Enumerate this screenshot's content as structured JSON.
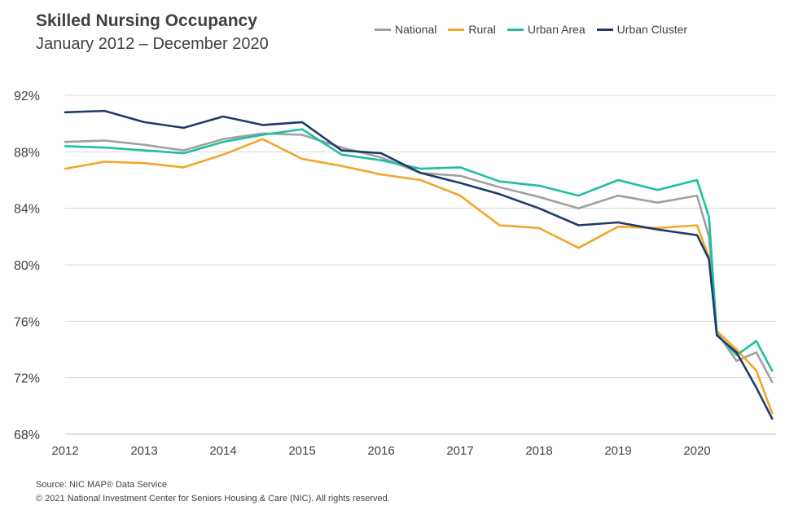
{
  "header": {
    "title": "Skilled Nursing Occupancy",
    "subtitle": "January 2012 – December 2020"
  },
  "footer": {
    "source": "Source: NIC MAP® Data Service",
    "copyright": "© 2021 National Investment Center for Seniors Housing & Care (NIC). All rights reserved."
  },
  "chart_data": {
    "type": "line",
    "title": "Skilled Nursing Occupancy",
    "subtitle": "January 2012 – December 2020",
    "xlabel": "",
    "ylabel": "",
    "x_ticks": [
      "2012",
      "2013",
      "2014",
      "2015",
      "2016",
      "2017",
      "2018",
      "2019",
      "2020"
    ],
    "y_ticks": [
      "68%",
      "72%",
      "76%",
      "80%",
      "84%",
      "88%",
      "92%"
    ],
    "ylim": [
      68,
      92
    ],
    "xlim": [
      2012,
      2021
    ],
    "grid": "horizontal",
    "legend_position": "top-right",
    "x_points": [
      2012.0,
      2012.5,
      2013.0,
      2013.5,
      2014.0,
      2014.5,
      2015.0,
      2015.5,
      2016.0,
      2016.5,
      2017.0,
      2017.5,
      2018.0,
      2018.5,
      2019.0,
      2019.5,
      2020.0,
      2020.15,
      2020.25,
      2020.5,
      2020.75,
      2020.95
    ],
    "series": [
      {
        "name": "National",
        "color": "#a0a0a0",
        "values": [
          88.7,
          88.8,
          88.5,
          88.1,
          88.9,
          89.3,
          89.2,
          88.3,
          87.6,
          86.5,
          86.3,
          85.5,
          84.8,
          84.0,
          84.9,
          84.4,
          84.9,
          82.0,
          75.2,
          73.2,
          73.8,
          71.7
        ]
      },
      {
        "name": "Rural",
        "color": "#f2a629",
        "values": [
          86.8,
          87.3,
          87.2,
          86.9,
          87.8,
          88.9,
          87.5,
          87.0,
          86.4,
          86.0,
          84.9,
          82.8,
          82.6,
          81.2,
          82.7,
          82.6,
          82.8,
          80.5,
          75.3,
          74.0,
          72.5,
          69.5
        ]
      },
      {
        "name": "Urban Area",
        "color": "#1fbf9e",
        "values": [
          88.4,
          88.3,
          88.1,
          87.9,
          88.7,
          89.2,
          89.6,
          87.8,
          87.4,
          86.8,
          86.9,
          85.9,
          85.6,
          84.9,
          86.0,
          85.3,
          86.0,
          83.4,
          75.1,
          73.6,
          74.6,
          72.5
        ]
      },
      {
        "name": "Urban Cluster",
        "color": "#1f3b6b",
        "values": [
          90.8,
          90.9,
          90.1,
          89.7,
          90.5,
          89.9,
          90.1,
          88.1,
          87.9,
          86.5,
          85.8,
          85.0,
          84.0,
          82.8,
          83.0,
          82.5,
          82.1,
          80.4,
          75.0,
          73.8,
          71.3,
          69.1
        ]
      }
    ]
  }
}
